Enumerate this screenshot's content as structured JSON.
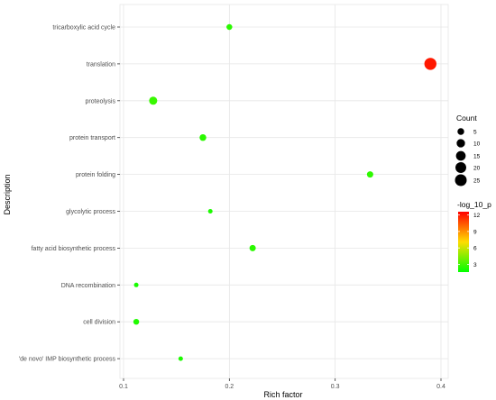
{
  "chart_data": {
    "type": "scatter",
    "xlabel": "Rich factor",
    "ylabel": "Description",
    "xlim": [
      0.1,
      0.4
    ],
    "x_ticks": [
      "0.1",
      "0.2",
      "0.3",
      "0.4"
    ],
    "grid": true,
    "legend_position": "right",
    "categories": [
      "tricarboxylic acid cycle",
      "translation",
      "proteolysis",
      "protein transport",
      "protein folding",
      "glycolytic process",
      "fatty acid biosynthetic process",
      "DNA recombination",
      "cell division",
      "'de novo' IMP biosynthetic process"
    ],
    "points": [
      {
        "category": "tricarboxylic acid cycle",
        "rich_factor": 0.2,
        "count": 3,
        "log_10_p": 2.5
      },
      {
        "category": "translation",
        "rich_factor": 0.39,
        "count": 27,
        "log_10_p": 12
      },
      {
        "category": "proteolysis",
        "rich_factor": 0.128,
        "count": 9,
        "log_10_p": 2.8
      },
      {
        "category": "protein transport",
        "rich_factor": 0.175,
        "count": 5,
        "log_10_p": 2.5
      },
      {
        "category": "protein folding",
        "rich_factor": 0.333,
        "count": 4,
        "log_10_p": 2.6
      },
      {
        "category": "glycolytic process",
        "rich_factor": 0.182,
        "count": 1,
        "log_10_p": 2.2
      },
      {
        "category": "fatty acid biosynthetic process",
        "rich_factor": 0.222,
        "count": 4,
        "log_10_p": 2.5
      },
      {
        "category": "DNA recombination",
        "rich_factor": 0.112,
        "count": 1,
        "log_10_p": 2.1
      },
      {
        "category": "cell division",
        "rich_factor": 0.112,
        "count": 3,
        "log_10_p": 2.3
      },
      {
        "category": "'de novo' IMP biosynthetic process",
        "rich_factor": 0.154,
        "count": 1,
        "log_10_p": 2.2
      }
    ],
    "size_legend": {
      "title": "Count",
      "values": [
        5,
        10,
        15,
        20,
        25
      ],
      "labels": [
        "5",
        "10",
        "15",
        "20",
        "25"
      ]
    },
    "color_legend": {
      "title": "-log_10_p",
      "range": [
        1.6,
        12.6
      ],
      "ticks": [
        3,
        6,
        9,
        12
      ],
      "tick_labels": [
        "3",
        "6",
        "9",
        "12"
      ],
      "low_color": "#00ff00",
      "high_color": "#ff0000"
    }
  }
}
